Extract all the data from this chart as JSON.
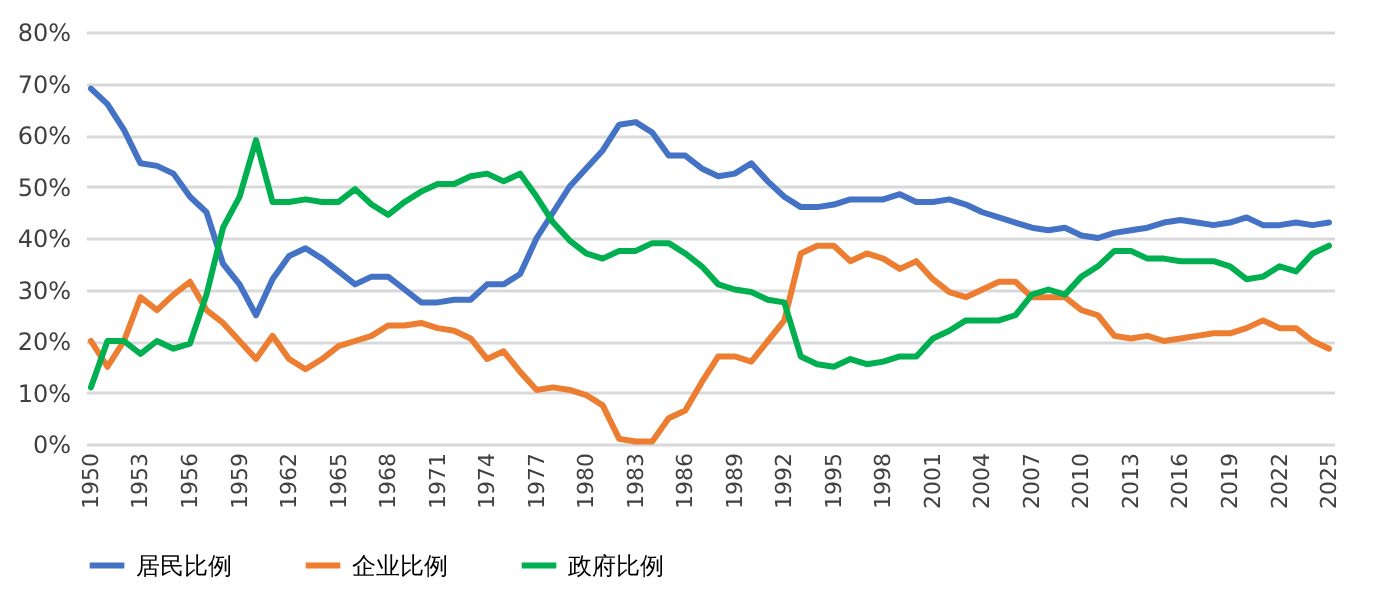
{
  "chart_data": {
    "type": "line",
    "categories": [
      "1950",
      null,
      null,
      "1953",
      null,
      null,
      "1956",
      null,
      null,
      "1959",
      null,
      null,
      "1962",
      null,
      null,
      "1965",
      null,
      null,
      "1968",
      null,
      null,
      "1971",
      null,
      null,
      "1974",
      null,
      null,
      "1977",
      null,
      null,
      "1980",
      null,
      null,
      "1983",
      null,
      null,
      "1986",
      null,
      null,
      "1989",
      null,
      null,
      "1992",
      null,
      null,
      "1995",
      null,
      null,
      "1998",
      null,
      null,
      "2001",
      null,
      null,
      "2004",
      null,
      null,
      "2007",
      null,
      null,
      "2010",
      null,
      null,
      "2013",
      null,
      null,
      "2016",
      null,
      null,
      "2019",
      null,
      null,
      "2022",
      null,
      null,
      "2025"
    ],
    "series": [
      {
        "name": "居民比例",
        "color": "#4472c4",
        "values": [
          69,
          66,
          61,
          54.5,
          54,
          52.5,
          48,
          45,
          35,
          31,
          25,
          32,
          36.5,
          38,
          36,
          33.5,
          31,
          32.5,
          32.5,
          30,
          27.5,
          27.5,
          28,
          28,
          31,
          31,
          33,
          40,
          45,
          50,
          53.5,
          57,
          62,
          62.5,
          60.5,
          56,
          56,
          53.5,
          52,
          52.5,
          54.5,
          51,
          48,
          46,
          46,
          46.5,
          47.5,
          47.5,
          47.5,
          48.5,
          47,
          47,
          47.5,
          46.5,
          45,
          44,
          43,
          42,
          41.5,
          42,
          40.5,
          40,
          41,
          41.5,
          42,
          43,
          43.5,
          43,
          42.5,
          43,
          44,
          42.5,
          42.5,
          43,
          42.5,
          43
        ]
      },
      {
        "name": "企业比例",
        "color": "#ed7d31",
        "values": [
          20,
          15,
          20,
          28.5,
          26,
          29,
          31.5,
          26,
          23.5,
          20,
          16.5,
          21,
          16.5,
          14.5,
          16.5,
          19,
          20,
          21,
          23,
          23,
          23.5,
          22.5,
          22,
          20.5,
          16.5,
          18,
          14,
          10.5,
          11,
          10.5,
          9.5,
          7.5,
          1,
          0.5,
          0.5,
          5,
          6.5,
          12,
          17,
          17,
          16,
          20,
          24,
          37,
          38.5,
          38.5,
          35.5,
          37,
          36,
          34,
          35.5,
          32,
          29.5,
          28.5,
          30,
          31.5,
          31.5,
          28.5,
          28.5,
          28.5,
          26,
          25,
          21,
          20.5,
          21,
          20,
          20.5,
          21,
          21.5,
          21.5,
          22.5,
          24,
          22.5,
          22.5,
          20,
          18.5
        ]
      },
      {
        "name": "政府比例",
        "color": "#00b050",
        "values": [
          11,
          20,
          20,
          17.5,
          20,
          18.5,
          19.5,
          29,
          42,
          48,
          59,
          47,
          47,
          47.5,
          47,
          47,
          49.5,
          46.5,
          44.5,
          47,
          49,
          50.5,
          50.5,
          52,
          52.5,
          51,
          52.5,
          48,
          43,
          39.5,
          37,
          36,
          37.5,
          37.5,
          39,
          39,
          37,
          34.5,
          31,
          30,
          29.5,
          28,
          27.5,
          17,
          15.5,
          15,
          16.5,
          15.5,
          16,
          17,
          17,
          20.5,
          22,
          24,
          24,
          24,
          25,
          29,
          30,
          29,
          32.5,
          34.5,
          37.5,
          37.5,
          36,
          36,
          35.5,
          35.5,
          35.5,
          34.5,
          32,
          32.5,
          34.5,
          33.5,
          37,
          38.5
        ]
      }
    ],
    "ylim": [
      0,
      80
    ],
    "yticks": [
      {
        "value": 0,
        "label": "0%"
      },
      {
        "value": 10,
        "label": "10%"
      },
      {
        "value": 20,
        "label": "20%"
      },
      {
        "value": 30,
        "label": "30%"
      },
      {
        "value": 40,
        "label": "40%"
      },
      {
        "value": 50,
        "label": "50%"
      },
      {
        "value": 60,
        "label": "60%"
      },
      {
        "value": 70,
        "label": "70%"
      },
      {
        "value": 80,
        "label": "80%"
      }
    ],
    "grid": "y",
    "legend": "bottom",
    "line_style": "solid"
  }
}
